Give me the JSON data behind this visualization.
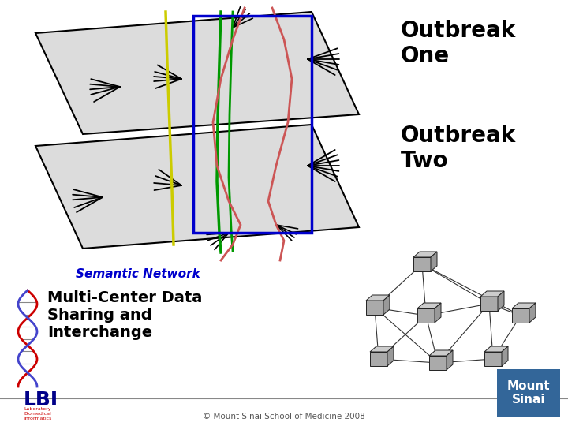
{
  "text_outbreak_one": "Outbreak\nOne",
  "text_outbreak_two": "Outbreak\nTwo",
  "text_semantic_network": "Semantic Network",
  "text_multi_center": "Multi-Center Data\nSharing and\nInterchange",
  "text_copyright": "© Mount Sinai School of Medicine 2008",
  "text_lbi": "LBI",
  "text_lbi_sub": "Laboratory\nBiomedical\nInformatics",
  "text_mount_sinai": "Mount\nSinai",
  "line_blue": "#0000cc",
  "line_yellow": "#cccc00",
  "line_green": "#009900",
  "line_red": "#cc5555",
  "mount_sinai_bg": "#336699",
  "plane_face": "#dcdcdc",
  "plane_edge": "#000000"
}
